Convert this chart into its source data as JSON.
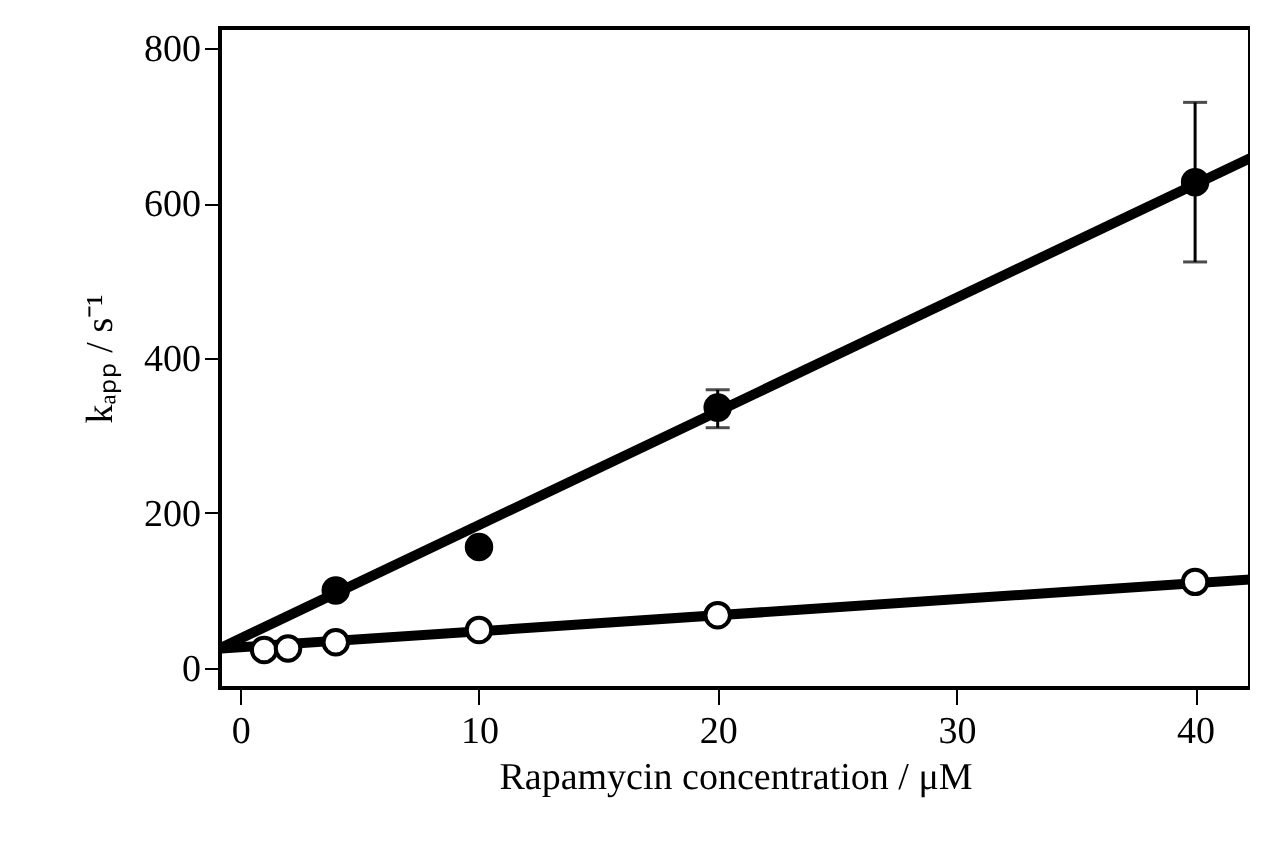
{
  "chart_data": {
    "type": "scatter",
    "xlabel": "Rapamycin concentration / μM",
    "ylabel": "kₐₚₚ / s⁻¹",
    "xlim": [
      -0.85,
      42.3
    ],
    "ylim": [
      -26,
      826
    ],
    "xticks": [
      0,
      10,
      20,
      30,
      40
    ],
    "yticks": [
      0,
      200,
      400,
      600,
      800
    ],
    "marker": "circle",
    "series": [
      {
        "color": "#000000",
        "x": [
          4,
          10,
          20,
          40
        ],
        "values": [
          100,
          156,
          336,
          627
        ],
        "errors": [
          null,
          null,
          [
            310,
            359
          ],
          [
            524,
            730
          ]
        ]
      },
      {
        "color": "#ffffff",
        "x": [
          1,
          2,
          4,
          10,
          20,
          40
        ],
        "values": [
          23,
          25,
          33,
          49,
          68,
          111
        ]
      },
      {
        "type": "line",
        "marker": "none",
        "color": "#000000",
        "line_style": "solid",
        "x": [
          -0.8,
          42.3
        ],
        "values": [
          26,
          658
        ]
      },
      {
        "type": "line",
        "marker": "none",
        "color": "#000000",
        "line_style": "solid",
        "x": [
          -0.8,
          42.3
        ],
        "values": [
          25,
          114
        ]
      }
    ]
  }
}
